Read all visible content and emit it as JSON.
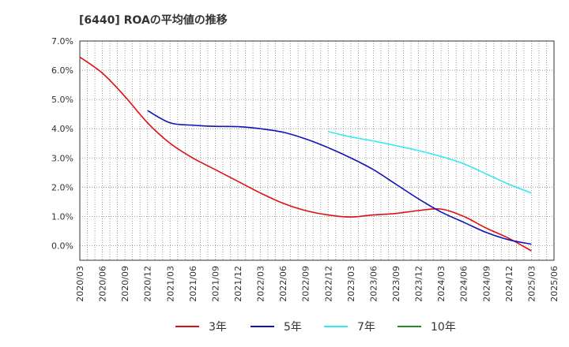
{
  "chart_data": {
    "type": "line",
    "title": "[6440]  ROAの平均値の推移",
    "xlabel": "",
    "ylabel": "",
    "ylim": [
      -0.5,
      7.0
    ],
    "yticks": [
      0.0,
      1.0,
      2.0,
      3.0,
      4.0,
      5.0,
      6.0,
      7.0
    ],
    "ytick_labels": [
      "0.0%",
      "1.0%",
      "2.0%",
      "3.0%",
      "4.0%",
      "5.0%",
      "6.0%",
      "7.0%"
    ],
    "x_labels": [
      "2020/03",
      "2020/06",
      "2020/09",
      "2020/12",
      "2021/03",
      "2021/06",
      "2021/09",
      "2021/12",
      "2022/03",
      "2022/06",
      "2022/09",
      "2022/12",
      "2023/03",
      "2023/06",
      "2023/09",
      "2023/12",
      "2024/03",
      "2024/06",
      "2024/09",
      "2024/12",
      "2025/03",
      "2025/06"
    ],
    "grid": true,
    "legend_position": "bottom",
    "series": [
      {
        "name": "3年",
        "color": "#dd1111",
        "values": [
          6.45,
          5.9,
          5.1,
          4.2,
          3.5,
          3.0,
          2.6,
          2.2,
          1.8,
          1.45,
          1.2,
          1.05,
          0.98,
          1.05,
          1.1,
          1.2,
          1.25,
          1.0,
          0.6,
          0.25,
          -0.18,
          null
        ]
      },
      {
        "name": "5年",
        "color": "#1111bb",
        "values": [
          null,
          null,
          null,
          4.62,
          4.2,
          4.12,
          4.08,
          4.07,
          4.0,
          3.88,
          3.65,
          3.35,
          3.0,
          2.6,
          2.1,
          1.6,
          1.15,
          0.8,
          0.45,
          0.2,
          0.05,
          null
        ]
      },
      {
        "name": "7年",
        "color": "#33e8f0",
        "values": [
          null,
          null,
          null,
          null,
          null,
          null,
          null,
          null,
          null,
          null,
          null,
          3.9,
          3.72,
          3.58,
          3.42,
          3.25,
          3.05,
          2.8,
          2.45,
          2.1,
          1.8,
          null
        ]
      },
      {
        "name": "10年",
        "color": "#228b22",
        "values": [
          null,
          null,
          null,
          null,
          null,
          null,
          null,
          null,
          null,
          null,
          null,
          null,
          null,
          null,
          null,
          null,
          null,
          null,
          null,
          null,
          null,
          null
        ]
      }
    ]
  }
}
